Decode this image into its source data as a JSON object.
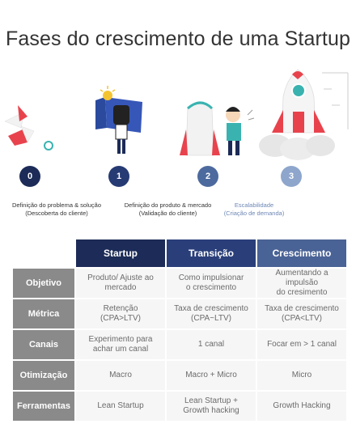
{
  "title": "Fases do crescimento de uma Startup",
  "stages": [
    {
      "number": "0",
      "label_line1": "Definição do problema & solução",
      "label_line2": "(Descoberta do cliente)",
      "color": "#1c2b57"
    },
    {
      "number": "1",
      "label_line1": "Definição do produto & mercado",
      "label_line2": "(Validação do cliente)",
      "color": "#263a73"
    },
    {
      "number": "2",
      "label_line1": "Escalabilidade",
      "label_line2": "(Criação de demanda)",
      "color": "#4d6a9e"
    },
    {
      "number": "3",
      "color": "#8ea6cc"
    }
  ],
  "table": {
    "columns": [
      "Startup",
      "Transição",
      "Crescimento"
    ],
    "rows": [
      {
        "label": "Objetivo",
        "cells": [
          {
            "line1": "Produto/ Ajuste ao",
            "line2": "mercado"
          },
          {
            "line1": "Como impulsionar",
            "line2": "o crescimento"
          },
          {
            "line1": "Aumentando a impulsão",
            "line2": "do cresimento"
          }
        ]
      },
      {
        "label": "Métrica",
        "cells": [
          {
            "line1": "Retenção",
            "line2": "(CPA>LTV)"
          },
          {
            "line1": "Taxa de crescimento",
            "line2": "(CPA~LTV)"
          },
          {
            "line1": "Taxa de crescimento",
            "line2": "(CPA<LTV)"
          }
        ]
      },
      {
        "label": "Canais",
        "cells": [
          {
            "line1": "Experimento para",
            "line2": "achar um canal"
          },
          {
            "line1": "1 canal",
            "line2": ""
          },
          {
            "line1": "Focar em > 1 canal",
            "line2": ""
          }
        ]
      },
      {
        "label": "Otimização",
        "cells": [
          {
            "line1": "Macro",
            "line2": ""
          },
          {
            "line1": "Macro + Micro",
            "line2": ""
          },
          {
            "line1": "Micro",
            "line2": ""
          }
        ]
      },
      {
        "label": "Ferramentas",
        "cells": [
          {
            "line1": "Lean Startup",
            "line2": ""
          },
          {
            "line1": "Lean Startup  +",
            "line2": "Growth hacking"
          },
          {
            "line1": "Growth Hacking",
            "line2": ""
          }
        ]
      }
    ]
  },
  "colors": {
    "stage_label_accent": "#6d87b5",
    "header_startup": "#1c2b57",
    "header_transicao": "#2a3f7a",
    "header_crescimento": "#4a6396",
    "row_label_bg": "#8a8a8a",
    "cell_bg": "#f6f6f6",
    "rocket_red": "#e8434d"
  }
}
